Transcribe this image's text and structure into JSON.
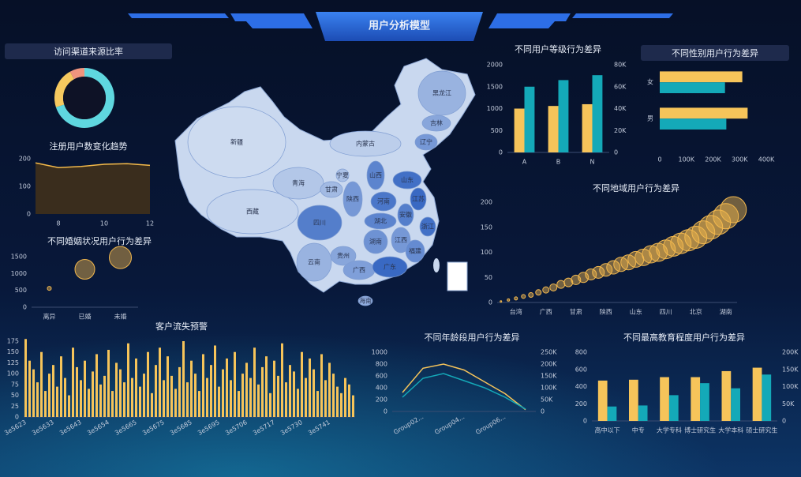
{
  "header": {
    "title": "用户分析模型"
  },
  "chart_data": [
    {
      "type": "pie",
      "title": "访问渠道来源比率",
      "values": [
        70,
        22,
        8
      ],
      "colors": [
        "#5fd7df",
        "#f6c95f",
        "#f0957e"
      ]
    },
    {
      "type": "area",
      "title": "注册用户数变化趋势",
      "x": [
        7,
        8,
        9,
        10,
        11,
        12
      ],
      "values": [
        185,
        168,
        172,
        180,
        182,
        176
      ],
      "xlim": [
        7,
        12
      ],
      "xticks": [
        8,
        10,
        12
      ],
      "ylim": [
        0,
        200
      ],
      "yticks": [
        0,
        100,
        200
      ],
      "color": "#f3b94a",
      "fill": "#3a2d1d"
    },
    {
      "type": "bubble",
      "title": "不同婚姻状况用户行为差异",
      "categories": [
        "离异",
        "已婚",
        "未婚"
      ],
      "ylim": [
        0,
        1500
      ],
      "yticks": [
        0,
        500,
        1000,
        1500
      ],
      "series": [
        {
          "color": "#f2b84e",
          "values": [
            560,
            1125,
            1475
          ],
          "sizes": [
            5,
            25,
            28
          ]
        }
      ]
    },
    {
      "type": "bar",
      "title": "客户流失预警",
      "categories": [
        "3e5623",
        null,
        null,
        null,
        null,
        null,
        null,
        "3e5633",
        null,
        null,
        null,
        null,
        null,
        null,
        "3e5643",
        null,
        null,
        null,
        null,
        null,
        null,
        "3e5654",
        null,
        null,
        null,
        null,
        null,
        null,
        "3e5665",
        null,
        null,
        null,
        null,
        null,
        null,
        "3e5675",
        null,
        null,
        null,
        null,
        null,
        null,
        "3e5685",
        null,
        null,
        null,
        null,
        null,
        null,
        "3e5695",
        null,
        null,
        null,
        null,
        null,
        null,
        "3e5706",
        null,
        null,
        null,
        null,
        null,
        null,
        "3e5717",
        null,
        null,
        null,
        null,
        null,
        null,
        "3e5730",
        null,
        null,
        null,
        null,
        null,
        null,
        "3e5741",
        null,
        null,
        null,
        null,
        null,
        null
      ],
      "ylim": [
        0,
        175
      ],
      "yticks": [
        0,
        25,
        50,
        75,
        100,
        125,
        150,
        175
      ],
      "series": [
        {
          "color": "#f6c45a",
          "values": [
            180,
            130,
            110,
            80,
            150,
            60,
            100,
            120,
            70,
            140,
            90,
            50,
            160,
            115,
            85,
            130,
            65,
            105,
            145,
            75,
            95,
            155,
            60,
            125,
            110,
            80,
            170,
            90,
            135,
            70,
            100,
            150,
            55,
            120,
            160,
            85,
            140,
            95,
            65,
            115,
            175,
            80,
            130,
            100,
            60,
            145,
            90,
            120,
            165,
            70,
            110,
            135,
            85,
            150,
            60,
            100,
            125,
            90,
            160,
            75,
            115,
            140,
            55,
            130,
            95,
            170,
            80,
            120,
            105,
            65,
            150,
            90,
            135,
            110,
            60,
            145,
            85,
            125,
            100,
            70,
            55,
            90,
            75,
            50
          ]
        }
      ]
    },
    {
      "type": "bar",
      "title": "不同用户等级行为差异",
      "categories": [
        "A",
        "B",
        "N"
      ],
      "ylim": [
        0,
        2000
      ],
      "yticks": [
        0,
        500,
        1000,
        1500,
        2000
      ],
      "y2lim": [
        0,
        80000
      ],
      "y2ticks": [
        0,
        {
          "value": 20000,
          "label": "20K"
        },
        {
          "value": 40000,
          "label": "40K"
        },
        {
          "value": 60000,
          "label": "60K"
        },
        {
          "value": 80000,
          "label": "80K"
        }
      ],
      "series": [
        {
          "color": "#f6c45a",
          "values": [
            1000,
            1060,
            1100
          ]
        },
        {
          "color": "#14a9b8",
          "axis": "y2",
          "values": [
            60000,
            66000,
            70500
          ]
        }
      ]
    },
    {
      "type": "hbar",
      "title": "不同性别用户行为差异",
      "categories": [
        "女",
        "男"
      ],
      "xlim": [
        0,
        400000
      ],
      "xticks": [
        0,
        {
          "value": 100000,
          "label": "100K"
        },
        {
          "value": 200000,
          "label": "200K"
        },
        {
          "value": 300000,
          "label": "300K"
        },
        {
          "value": 400000,
          "label": "400K"
        }
      ],
      "series": [
        {
          "color": "#f6c45a",
          "values": [
            310000,
            330000
          ]
        },
        {
          "color": "#14a9b8",
          "values": [
            245000,
            250000
          ]
        }
      ]
    },
    {
      "type": "bubble",
      "title": "不同地域用户行为差异",
      "categories": [
        null,
        null,
        "台湾",
        null,
        null,
        null,
        "广西",
        null,
        null,
        null,
        "甘肃",
        null,
        null,
        null,
        "陕西",
        null,
        null,
        null,
        "山东",
        null,
        null,
        null,
        "四川",
        null,
        null,
        null,
        "北京",
        null,
        null,
        null,
        "湖南",
        null
      ],
      "ylim": [
        0,
        200
      ],
      "yticks": [
        0,
        50,
        100,
        150,
        200
      ],
      "series": [
        {
          "color": "#f2b84e",
          "values": [
            2,
            5,
            8,
            12,
            15,
            20,
            25,
            30,
            36,
            40,
            45,
            50,
            56,
            60,
            65,
            70,
            76,
            80,
            86,
            90,
            96,
            100,
            106,
            112,
            118,
            124,
            130,
            140,
            150,
            160,
            172,
            185
          ],
          "sizes": [
            2,
            3,
            4,
            5,
            6,
            7,
            8,
            9,
            10,
            11,
            12,
            13,
            14,
            15,
            16,
            17,
            18,
            19,
            20,
            21,
            22,
            23,
            24,
            25,
            26,
            27,
            28,
            29,
            30,
            31,
            32,
            33
          ]
        }
      ]
    },
    {
      "type": "line",
      "title": "不同年龄段用户行为差异",
      "categories": [
        null,
        "Group02...",
        null,
        "Group04...",
        null,
        "Group06...",
        null
      ],
      "ylim": [
        0,
        1000
      ],
      "yticks": [
        0,
        200,
        400,
        600,
        800,
        1000
      ],
      "y2lim": [
        0,
        250000
      ],
      "y2ticks": [
        0,
        {
          "value": 50000,
          "label": "50K"
        },
        {
          "value": 100000,
          "label": "100K"
        },
        {
          "value": 150000,
          "label": "150K"
        },
        {
          "value": 200000,
          "label": "200K"
        },
        {
          "value": 250000,
          "label": "250K"
        }
      ],
      "series": [
        {
          "color": "#f6c45a",
          "values": [
            320,
            730,
            800,
            700,
            500,
            300,
            30
          ]
        },
        {
          "color": "#14a9b8",
          "axis": "y2",
          "values": [
            60000,
            140000,
            160000,
            130000,
            100000,
            60000,
            10000
          ]
        }
      ]
    },
    {
      "type": "bar",
      "title": "不同最高教育程度用户行为差异",
      "categories": [
        "高中以下",
        "中专",
        "大学专科",
        "博士研究生",
        "大学本科",
        "硕士研究生"
      ],
      "ylim": [
        0,
        800
      ],
      "yticks": [
        0,
        200,
        400,
        600,
        800
      ],
      "y2lim": [
        0,
        200000
      ],
      "y2ticks": [
        0,
        {
          "value": 50000,
          "label": "50K"
        },
        {
          "value": 100000,
          "label": "100K"
        },
        {
          "value": 150000,
          "label": "150K"
        },
        {
          "value": 200000,
          "label": "200K"
        }
      ],
      "series": [
        {
          "color": "#f6c45a",
          "values": [
            470,
            480,
            510,
            510,
            580,
            620
          ]
        },
        {
          "color": "#14a9b8",
          "axis": "y2",
          "values": [
            42000,
            45000,
            75000,
            110000,
            95000,
            135000
          ]
        }
      ]
    },
    {
      "type": "map",
      "categories": [
        "新疆",
        "西藏",
        "青海",
        "甘肃",
        "宁夏",
        "内蒙古",
        "黑龙江",
        "吉林",
        "辽宁",
        "山西",
        "陕西",
        "河南",
        "山东",
        "江苏",
        "安徽",
        "湖北",
        "四川",
        "浙江",
        "湖南",
        "江西",
        "福建",
        "贵州",
        "云南",
        "广西",
        "广东",
        "海南"
      ],
      "values": [
        5,
        10,
        20,
        30,
        25,
        15,
        35,
        45,
        55,
        70,
        55,
        80,
        85,
        90,
        75,
        70,
        75,
        85,
        60,
        55,
        65,
        45,
        35,
        50,
        90,
        40
      ]
    }
  ]
}
